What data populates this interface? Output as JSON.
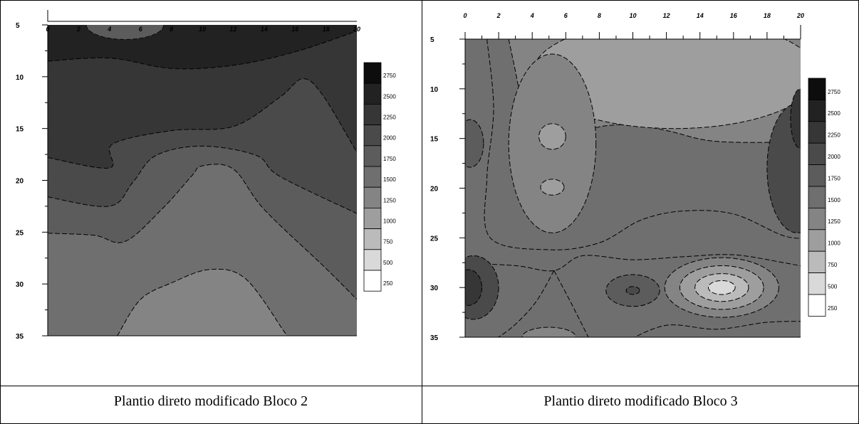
{
  "chart_data": [
    {
      "type": "heatmap",
      "subtype": "filled-contour",
      "caption": "Plantio direto modificado Bloco 2",
      "x_ticks": [
        0,
        2,
        4,
        6,
        8,
        10,
        12,
        14,
        16,
        18,
        20
      ],
      "y_ticks": [
        5,
        10,
        15,
        20,
        25,
        30,
        35
      ],
      "xlim": [
        0,
        20
      ],
      "ylim": [
        5,
        35
      ],
      "legend_levels": [
        2750,
        2500,
        2250,
        2000,
        1750,
        1500,
        1250,
        1000,
        750,
        500,
        250
      ],
      "legend_colors": [
        "#0d0d0d",
        "#222222",
        "#363636",
        "#4a4a4a",
        "#5c5c5c",
        "#6f6f6f",
        "#848484",
        "#9e9e9e",
        "#bbbbbb",
        "#d9d9d9",
        "#ffffff"
      ],
      "contour_level_boundaries": [
        {
          "level": 2500,
          "points": [
            [
              0,
              8.5
            ],
            [
              4,
              8.2
            ],
            [
              8,
              9.2
            ],
            [
              12,
              8.9
            ],
            [
              16,
              7.6
            ],
            [
              20,
              5.6
            ]
          ]
        },
        {
          "level": 2250,
          "points": [
            [
              0,
              17.8
            ],
            [
              4,
              18.8
            ],
            [
              4.2,
              16.5
            ],
            [
              8,
              15.2
            ],
            [
              12,
              14.8
            ],
            [
              15,
              12
            ],
            [
              16.5,
              10.2
            ],
            [
              17.8,
              11.8
            ],
            [
              20,
              17.3
            ]
          ]
        },
        {
          "level": 2000,
          "points": [
            [
              0,
              21.6
            ],
            [
              4,
              22.5
            ],
            [
              5.5,
              20.2
            ],
            [
              7,
              17.6
            ],
            [
              10,
              16.7
            ],
            [
              13.5,
              17.6
            ],
            [
              15,
              19.6
            ],
            [
              20,
              23.2
            ]
          ]
        },
        {
          "level": 1750,
          "points": [
            [
              0,
              25.1
            ],
            [
              3,
              25.3
            ],
            [
              5,
              25.9
            ],
            [
              7.5,
              22.6
            ],
            [
              9.3,
              19.6
            ],
            [
              10,
              18.6
            ],
            [
              12,
              18.9
            ],
            [
              14,
              22.8
            ],
            [
              18,
              28.5
            ],
            [
              20,
              31.5
            ]
          ]
        },
        {
          "level": 1500,
          "points": [
            [
              4.5,
              35
            ],
            [
              6,
              31.5
            ],
            [
              8,
              29.9
            ],
            [
              10.5,
              28.6
            ],
            [
              12.8,
              29.5
            ],
            [
              15.3,
              34.6
            ],
            [
              15.5,
              35
            ]
          ]
        }
      ]
    },
    {
      "type": "heatmap",
      "subtype": "filled-contour",
      "caption": "Plantio direto modificado Bloco 3",
      "x_ticks": [
        0,
        2,
        4,
        6,
        8,
        10,
        12,
        14,
        16,
        18,
        20
      ],
      "y_ticks": [
        5,
        10,
        15,
        20,
        25,
        30,
        35
      ],
      "xlim": [
        0,
        20
      ],
      "ylim": [
        5,
        35
      ],
      "legend_levels": [
        2750,
        2500,
        2250,
        2000,
        1750,
        1500,
        1250,
        1000,
        750,
        500,
        250
      ],
      "legend_colors": [
        "#0d0d0d",
        "#222222",
        "#363636",
        "#4a4a4a",
        "#5c5c5c",
        "#6f6f6f",
        "#848484",
        "#9e9e9e",
        "#bbbbbb",
        "#d9d9d9",
        "#ffffff"
      ],
      "features": [
        {
          "kind": "low",
          "level": 500,
          "center": [
            15.6,
            5.8
          ],
          "rx": 2.4,
          "ry": 1.4
        },
        {
          "kind": "low",
          "level": 750,
          "center": [
            14.5,
            7.2
          ],
          "rx": 5.5,
          "ry": 3.4
        },
        {
          "kind": "low",
          "level": 1000,
          "center": [
            12.5,
            8.5
          ],
          "rx": 8.5,
          "ry": 5.5
        },
        {
          "kind": "low",
          "level": 1250,
          "center": [
            5.2,
            15.5
          ],
          "rx": 2.6,
          "ry": 9.0
        },
        {
          "kind": "low",
          "level": 1000,
          "center": [
            5.2,
            14.8
          ],
          "rx": 0.8,
          "ry": 1.3
        },
        {
          "kind": "low",
          "level": 1000,
          "center": [
            5.2,
            19.9
          ],
          "rx": 0.7,
          "ry": 0.8
        },
        {
          "kind": "low",
          "level": 1250,
          "center": [
            15.3,
            30
          ],
          "rx": 3.4,
          "ry": 3.0
        },
        {
          "kind": "low",
          "level": 1000,
          "center": [
            15.3,
            30
          ],
          "rx": 2.5,
          "ry": 2.2
        },
        {
          "kind": "low",
          "level": 750,
          "center": [
            15.3,
            30
          ],
          "rx": 1.6,
          "ry": 1.4
        },
        {
          "kind": "low",
          "level": 500,
          "center": [
            15.3,
            30
          ],
          "rx": 0.8,
          "ry": 0.7
        },
        {
          "kind": "low",
          "level": 1250,
          "center": [
            5.0,
            35
          ],
          "rx": 1.6,
          "ry": 1.0
        },
        {
          "kind": "high",
          "level": 2000,
          "center": [
            19.8,
            18
          ],
          "rx": 1.8,
          "ry": 6.5
        },
        {
          "kind": "high",
          "level": 2250,
          "center": [
            20.0,
            13
          ],
          "rx": 0.6,
          "ry": 3.0
        },
        {
          "kind": "high",
          "level": 2000,
          "center": [
            0.5,
            30
          ],
          "rx": 1.5,
          "ry": 3.2
        },
        {
          "kind": "high",
          "level": 2250,
          "center": [
            0.2,
            30
          ],
          "rx": 0.8,
          "ry": 1.8
        },
        {
          "kind": "high",
          "level": 1750,
          "center": [
            10,
            30.3
          ],
          "rx": 1.6,
          "ry": 1.6
        },
        {
          "kind": "high",
          "level": 2000,
          "center": [
            10,
            30.3
          ],
          "rx": 0.4,
          "ry": 0.4
        },
        {
          "kind": "high",
          "level": 1750,
          "center": [
            0.3,
            15.5
          ],
          "rx": 0.8,
          "ry": 2.4
        }
      ]
    }
  ]
}
